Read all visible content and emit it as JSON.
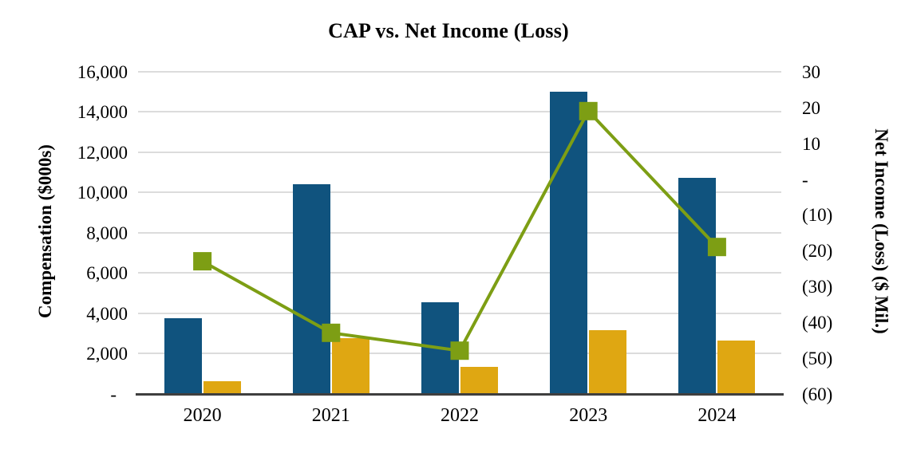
{
  "chart_data": {
    "type": "combo-bar-line",
    "title": "CAP vs. Net Income (Loss)",
    "categories": [
      "2020",
      "2021",
      "2022",
      "2023",
      "2024"
    ],
    "series": [
      {
        "name": "blue-bars-compensation",
        "type": "bar",
        "axis": "left",
        "color": "#10537E",
        "values": [
          3750,
          10450,
          4550,
          15050,
          10750
        ]
      },
      {
        "name": "gold-bars-compensation",
        "type": "bar",
        "axis": "left",
        "color": "#DFA712",
        "values": [
          650,
          2780,
          1360,
          3190,
          2640
        ]
      },
      {
        "name": "green-line-net-income",
        "type": "line",
        "axis": "right",
        "color": "#7D9E14",
        "marker": "square",
        "values": [
          -23,
          -43,
          -48,
          19,
          -19
        ]
      }
    ],
    "left_axis": {
      "title": "Compensation ($000s)",
      "min": 0,
      "max": 16000,
      "step": 2000,
      "ticks": [
        "16,000",
        "14,000",
        "12,000",
        "10,000",
        "8,000",
        "6,000",
        "4,000",
        "2,000",
        "-"
      ]
    },
    "right_axis": {
      "title": "Net Income (Loss) ($ Mil.)",
      "min": -60,
      "max": 30,
      "step": 10,
      "ticks": [
        "30",
        "20",
        "10",
        "-",
        "(10)",
        "(20)",
        "(30)",
        "(40)",
        "(50)",
        "(60)"
      ]
    },
    "x_axis": {
      "labels": [
        "2020",
        "2021",
        "2022",
        "2023",
        "2024"
      ]
    },
    "grid": true,
    "legend": "none",
    "colors": {
      "gridline": "#DCDCDC",
      "axis_line": "#3F3F3F",
      "text": "#000000",
      "background": "#FFFFFF"
    }
  }
}
